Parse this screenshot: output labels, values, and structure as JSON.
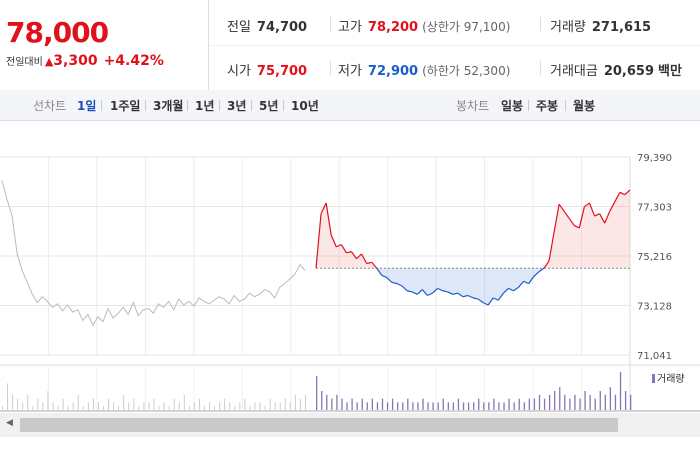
{
  "summary": {
    "price": "78,000",
    "change_label": "전일대비",
    "change_icon": "up-triangle-icon",
    "change_amount": "3,300",
    "change_pct": "+4.42%",
    "prev_close_label": "전일",
    "prev_close": "74,700",
    "high_label": "고가",
    "high": "78,200",
    "upper_limit": "(상한가 97,100)",
    "volume_label": "거래량",
    "volume": "271,615",
    "open_label": "시가",
    "open": "75,700",
    "low_label": "저가",
    "low": "72,900",
    "lower_limit": "(하한가 52,300)",
    "amount_label": "거래대금",
    "amount": "20,659",
    "amount_unit": "백만"
  },
  "tabs": {
    "line_label": "선차트",
    "line_items": [
      "1일",
      "1주일",
      "3개월",
      "1년",
      "3년",
      "5년",
      "10년"
    ],
    "active": "1일",
    "candle_label": "봉차트",
    "candle_items": [
      "일봉",
      "주봉",
      "월봉"
    ]
  },
  "colors": {
    "up": "#e0111a",
    "down": "#1a5ccc",
    "prev": "#bbbbbb",
    "volume": "#8a74b8"
  },
  "chart_data": {
    "type": "line",
    "ylim": [
      71041,
      79390
    ],
    "yticks": [
      "79,390",
      "77,303",
      "75,216",
      "73,128",
      "71,041"
    ],
    "baseline": 74700,
    "prev_day_series": [
      78400,
      77600,
      76900,
      75300,
      74600,
      74100,
      73600,
      73250,
      73500,
      73300,
      73050,
      73200,
      72900,
      73150,
      72850,
      72950,
      72500,
      72750,
      72300,
      72650,
      72450,
      73000,
      72600,
      72800,
      73050,
      72750,
      73250,
      72700,
      72950,
      73000,
      72800,
      73200,
      73050,
      73300,
      72950,
      73400,
      73150,
      73300,
      73100,
      73450,
      73300,
      73200,
      73350,
      73500,
      73400,
      73200,
      73550,
      73300,
      73400,
      73650,
      73500,
      73600,
      73800,
      73700,
      73450,
      73900,
      74050,
      74250,
      74450,
      74850,
      74600
    ],
    "today_series": [
      74700,
      77000,
      77450,
      76100,
      75600,
      75700,
      75350,
      75400,
      75100,
      75300,
      74900,
      74950,
      74700,
      74400,
      74300,
      74100,
      74050,
      73950,
      73750,
      73700,
      73600,
      73800,
      73550,
      73650,
      73850,
      73750,
      73700,
      73600,
      73650,
      73500,
      73550,
      73450,
      73400,
      73250,
      73150,
      73450,
      73350,
      73650,
      73850,
      73750,
      73900,
      74150,
      74050,
      74350,
      74550,
      74700,
      75000,
      76200,
      77400,
      77100,
      76800,
      76500,
      76400,
      77300,
      77450,
      76900,
      77000,
      76600,
      77100,
      77500,
      77900,
      77800,
      78000
    ],
    "volume_label": "거래량",
    "prev_volume": [
      1,
      7,
      4,
      3,
      2,
      4,
      1,
      3,
      2,
      5,
      2,
      1,
      3,
      1,
      2,
      4,
      1,
      2,
      3,
      2,
      1,
      3,
      2,
      1,
      4,
      2,
      3,
      1,
      2,
      2,
      3,
      1,
      2,
      1,
      3,
      2,
      4,
      1,
      2,
      3,
      1,
      2,
      1,
      2,
      3,
      2,
      1,
      2,
      3,
      1,
      2,
      2,
      1,
      3,
      2,
      2,
      3,
      2,
      4,
      3,
      4
    ],
    "today_volume": [
      9,
      5,
      4,
      3,
      4,
      3,
      2,
      3,
      2,
      3,
      2,
      3,
      2,
      3,
      2,
      3,
      2,
      2,
      3,
      2,
      2,
      3,
      2,
      2,
      2,
      3,
      2,
      2,
      3,
      2,
      2,
      2,
      3,
      2,
      2,
      3,
      2,
      2,
      3,
      2,
      3,
      2,
      3,
      3,
      4,
      3,
      4,
      5,
      6,
      4,
      3,
      4,
      3,
      5,
      4,
      3,
      5,
      4,
      6,
      4,
      10,
      5,
      4
    ]
  }
}
